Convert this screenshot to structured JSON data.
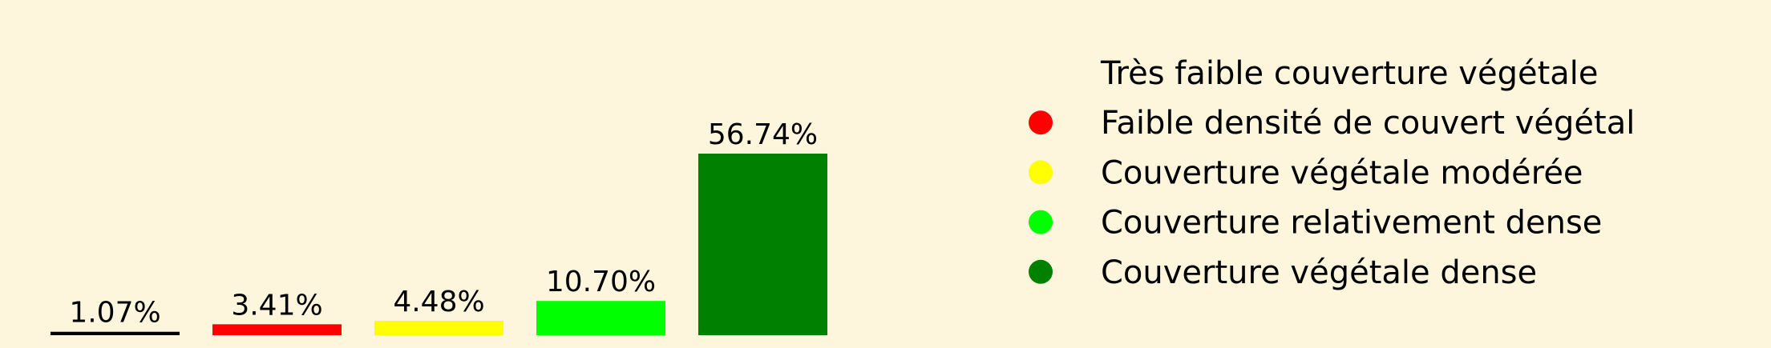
{
  "colors": {
    "background": "#fdf6dc",
    "text": "#000000"
  },
  "chart_data": {
    "type": "bar",
    "title": "",
    "xlabel": "",
    "ylabel": "",
    "ylim": [
      0,
      60
    ],
    "grid": false,
    "legend_position": "right",
    "categories": [
      "Très faible couverture végétale",
      "Faible densité de couvert végétal",
      "Couverture végétale modérée",
      "Couverture relativement dense",
      "Couverture végétale dense"
    ],
    "values": [
      1.07,
      3.41,
      4.48,
      10.7,
      56.74
    ],
    "data_labels": [
      "1.07%",
      "3.41%",
      "4.48%",
      "10.70%",
      "56.74%"
    ],
    "colors": [
      "#000000",
      "#ff0000",
      "#ffff00",
      "#00ff00",
      "#008000"
    ],
    "legend": [
      {
        "label": "Très faible couverture végétale",
        "color": "#000000",
        "marker": "none"
      },
      {
        "label": "Faible densité de couvert végétal",
        "color": "#ff0000",
        "marker": "circle"
      },
      {
        "label": "Couverture végétale modérée",
        "color": "#ffff00",
        "marker": "circle"
      },
      {
        "label": "Couverture relativement dense",
        "color": "#00ff00",
        "marker": "circle"
      },
      {
        "label": "Couverture végétale dense",
        "color": "#008000",
        "marker": "circle"
      }
    ]
  }
}
